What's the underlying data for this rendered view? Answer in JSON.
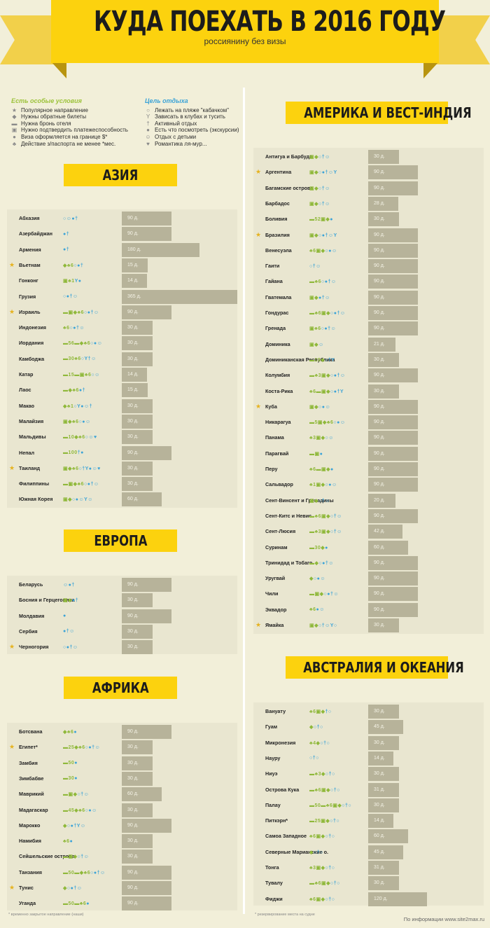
{
  "header": {
    "title": "КУДА ПОЕХАТЬ В 2016 ГОДУ",
    "subtitle": "россиянину без визы"
  },
  "legend": {
    "conditions_title": "Есть особые условия",
    "conditions": [
      {
        "glyph": "★",
        "text": "Популярное направление"
      },
      {
        "glyph": "◆",
        "text": "Нужны обратные билеты"
      },
      {
        "glyph": "▬",
        "text": "Нужна бронь отеля"
      },
      {
        "glyph": "▣",
        "text": "Нужно подтвердить платежеспособность"
      },
      {
        "glyph": "●",
        "text": "Виза оформляется на границе $*"
      },
      {
        "glyph": "♣",
        "text": "Действие з/паспорта не менее *мес."
      }
    ],
    "goals_title": "Цель отдыха",
    "goals": [
      {
        "glyph": "○",
        "text": "Лежать на пляже \"кабачком\""
      },
      {
        "glyph": "Y",
        "text": "Зависать в клубах и тусить"
      },
      {
        "glyph": "†",
        "text": "Активный отдых"
      },
      {
        "glyph": "●",
        "text": "Есть что посмотреть (экскурсии)"
      },
      {
        "glyph": "☺",
        "text": "Отдых с детьми"
      },
      {
        "glyph": "♥",
        "text": "Романтика ля-мур..."
      }
    ]
  },
  "max_days": 365,
  "regions": [
    {
      "title": "АЗИЯ",
      "countries": [
        {
          "name": "Абхазия",
          "star": false,
          "cond": "",
          "goal": "○☺●†",
          "days": 90,
          "days_label": "90 д."
        },
        {
          "name": "Азербайджан",
          "star": false,
          "cond": "",
          "goal": "●†",
          "days": 90,
          "days_label": "90 д."
        },
        {
          "name": "Армения",
          "star": false,
          "cond": "",
          "goal": "●†",
          "days": 180,
          "days_label": "180 д."
        },
        {
          "name": "Вьетнам",
          "star": true,
          "cond": "◆♣6",
          "goal": "○●†",
          "days": 15,
          "days_label": "15 д."
        },
        {
          "name": "Гонконг",
          "star": false,
          "cond": "▣♣1",
          "goal": "Y●",
          "days": 14,
          "days_label": "14 д."
        },
        {
          "name": "Грузия",
          "star": false,
          "cond": "",
          "goal": "○●†☺",
          "days": 365,
          "days_label": "365 д."
        },
        {
          "name": "Израиль",
          "star": true,
          "cond": "▬▣◆♣6",
          "goal": "○●†☺",
          "days": 90,
          "days_label": "90 д."
        },
        {
          "name": "Индонезия",
          "star": false,
          "cond": "♣6",
          "goal": "○●†☺",
          "days": 30,
          "days_label": "30 д."
        },
        {
          "name": "Иордания",
          "star": false,
          "cond": "▬56▬◆♣6",
          "goal": "○●☺",
          "days": 30,
          "days_label": "30 д."
        },
        {
          "name": "Камбоджа",
          "star": false,
          "cond": "▬30♣6",
          "goal": "○Y†☺",
          "days": 30,
          "days_label": "30 д."
        },
        {
          "name": "Катар",
          "star": false,
          "cond": "▬15▬▣♣6",
          "goal": "○☺",
          "days": 14,
          "days_label": "14 д."
        },
        {
          "name": "Лаос",
          "star": false,
          "cond": "▬◆♣6",
          "goal": "●†",
          "days": 15,
          "days_label": "15 д."
        },
        {
          "name": "Макао",
          "star": false,
          "cond": "◆♣1",
          "goal": "○Y●☺†",
          "days": 30,
          "days_label": "30 д."
        },
        {
          "name": "Малайзия",
          "star": false,
          "cond": "▣◆♣6",
          "goal": "○●☺",
          "days": 30,
          "days_label": "30 д."
        },
        {
          "name": "Мальдивы",
          "star": false,
          "cond": "▬10◆♣6",
          "goal": "○☺♥",
          "days": 30,
          "days_label": "30 д."
        },
        {
          "name": "Непал",
          "star": false,
          "cond": "▬100",
          "goal": "†●",
          "days": 90,
          "days_label": "90 д."
        },
        {
          "name": "Таиланд",
          "star": true,
          "cond": "▣◆♣6",
          "goal": "○†Y●☺♥",
          "days": 30,
          "days_label": "30 д."
        },
        {
          "name": "Филиппины",
          "star": false,
          "cond": "▬▣◆♣6",
          "goal": "○●†☺",
          "days": 30,
          "days_label": "30 д."
        },
        {
          "name": "Южная Корея",
          "star": false,
          "cond": "▣◆",
          "goal": "○●☺Y☺",
          "days": 60,
          "days_label": "60 д."
        }
      ]
    },
    {
      "title": "ЕВРОПА",
      "countries": [
        {
          "name": "Беларусь",
          "star": false,
          "cond": "",
          "goal": "☺●†",
          "days": 90,
          "days_label": "90 д."
        },
        {
          "name": "Босния и Герцеговина",
          "star": false,
          "cond": "▣◆",
          "goal": "●†",
          "days": 30,
          "days_label": "30 д."
        },
        {
          "name": "Молдавия",
          "star": false,
          "cond": "",
          "goal": "●",
          "days": 90,
          "days_label": "90 д."
        },
        {
          "name": "Сербия",
          "star": false,
          "cond": "",
          "goal": "●†☺",
          "days": 30,
          "days_label": "30 д."
        },
        {
          "name": "Черногория",
          "star": true,
          "cond": "",
          "goal": "○●†☺",
          "days": 30,
          "days_label": "30 д."
        }
      ]
    },
    {
      "title": "АФРИКА",
      "countries": [
        {
          "name": "Ботсвана",
          "star": false,
          "cond": "◆♣6",
          "goal": "●",
          "days": 90,
          "days_label": "90 д."
        },
        {
          "name": "Египет*",
          "star": true,
          "cond": "▬25◆♣6",
          "goal": "○●†☺",
          "days": 30,
          "days_label": "30 д."
        },
        {
          "name": "Замбия",
          "star": false,
          "cond": "▬50",
          "goal": "●",
          "days": 30,
          "days_label": "30 д."
        },
        {
          "name": "Зимбабве",
          "star": false,
          "cond": "▬30",
          "goal": "●",
          "days": 30,
          "days_label": "30 д."
        },
        {
          "name": "Маврикий",
          "star": false,
          "cond": "▬▣◆",
          "goal": "○†☺",
          "days": 60,
          "days_label": "60 д."
        },
        {
          "name": "Мадагаскар",
          "star": false,
          "cond": "▬45◆♣6",
          "goal": "○●☺",
          "days": 30,
          "days_label": "30 д."
        },
        {
          "name": "Марокко",
          "star": false,
          "cond": "◆",
          "goal": "○●†Y☺",
          "days": 90,
          "days_label": "90 д."
        },
        {
          "name": "Намибия",
          "star": false,
          "cond": "♣6",
          "goal": "●",
          "days": 30,
          "days_label": "30 д."
        },
        {
          "name": "Сейшельские острова",
          "star": false,
          "cond": "▬▣◆",
          "goal": "○†☺",
          "days": 30,
          "days_label": "30 д."
        },
        {
          "name": "Танзания",
          "star": false,
          "cond": "▬50▬◆♣6",
          "goal": "○●†☺",
          "days": 90,
          "days_label": "90 д."
        },
        {
          "name": "Тунис",
          "star": true,
          "cond": "◆",
          "goal": "○●†☺",
          "days": 90,
          "days_label": "90 д."
        },
        {
          "name": "Уганда",
          "star": false,
          "cond": "▬50▬♣6",
          "goal": "●",
          "days": 90,
          "days_label": "90 д."
        }
      ]
    },
    {
      "title": "АМЕРИКА И ВЕСТ-ИНДИЯ",
      "countries": [
        {
          "name": "Антигуа и Барбуда",
          "star": false,
          "cond": "▣◆",
          "goal": "○†☺",
          "days": 30,
          "days_label": "30 д."
        },
        {
          "name": "Аргентина",
          "star": true,
          "cond": "▣◆",
          "goal": "○●†☺Y",
          "days": 90,
          "days_label": "90 д."
        },
        {
          "name": "Багамские острова",
          "star": false,
          "cond": "▣◆",
          "goal": "○†☺",
          "days": 90,
          "days_label": "90 д."
        },
        {
          "name": "Барбадос",
          "star": false,
          "cond": "▣◆",
          "goal": "○†☺",
          "days": 28,
          "days_label": "28 д."
        },
        {
          "name": "Боливия",
          "star": false,
          "cond": "▬52▣◆",
          "goal": "●",
          "days": 30,
          "days_label": "30 д."
        },
        {
          "name": "Бразилия",
          "star": true,
          "cond": "▣◆",
          "goal": "○●†☺Y",
          "days": 90,
          "days_label": "90 д."
        },
        {
          "name": "Венесуэла",
          "star": false,
          "cond": "♣6▣◆",
          "goal": "○●☺",
          "days": 90,
          "days_label": "90 д."
        },
        {
          "name": "Гаити",
          "star": false,
          "cond": "",
          "goal": "○†☺",
          "days": 90,
          "days_label": "90 д."
        },
        {
          "name": "Гайана",
          "star": false,
          "cond": "▬♣6",
          "goal": "○●†☺",
          "days": 90,
          "days_label": "90 д."
        },
        {
          "name": "Гватемала",
          "star": false,
          "cond": "▣◆",
          "goal": "●†☺",
          "days": 90,
          "days_label": "90 д."
        },
        {
          "name": "Гондурас",
          "star": false,
          "cond": "▬♣6▣◆",
          "goal": "○●†☺",
          "days": 90,
          "days_label": "90 д."
        },
        {
          "name": "Гренада",
          "star": false,
          "cond": "▣♣6",
          "goal": "○●†☺",
          "days": 90,
          "days_label": "90 д."
        },
        {
          "name": "Доминика",
          "star": false,
          "cond": "▣◆",
          "goal": "☺",
          "days": 21,
          "days_label": "21 д."
        },
        {
          "name": "Доминиканская Республика",
          "star": false,
          "cond": "▬10◆",
          "goal": "○†Y",
          "days": 30,
          "days_label": "30 д."
        },
        {
          "name": "Колумбия",
          "star": false,
          "cond": "▬♣3▣◆",
          "goal": "○●†☺",
          "days": 90,
          "days_label": "90 д."
        },
        {
          "name": "Коста-Рика",
          "star": false,
          "cond": "♣6▬▣◆",
          "goal": "○●†Y",
          "days": 30,
          "days_label": "30 д."
        },
        {
          "name": "Куба",
          "star": true,
          "cond": "▣◆",
          "goal": "○●☺",
          "days": 90,
          "days_label": "90 д."
        },
        {
          "name": "Никарагуа",
          "star": false,
          "cond": "▬5▣◆♣6",
          "goal": "○●☺",
          "days": 90,
          "days_label": "90 д."
        },
        {
          "name": "Панама",
          "star": false,
          "cond": "♣3▣◆",
          "goal": "○☺",
          "days": 90,
          "days_label": "90 д."
        },
        {
          "name": "Парагвай",
          "star": false,
          "cond": "▬▣",
          "goal": "●",
          "days": 90,
          "days_label": "90 д."
        },
        {
          "name": "Перу",
          "star": false,
          "cond": "♣6▬▣◆",
          "goal": "●",
          "days": 90,
          "days_label": "90 д."
        },
        {
          "name": "Сальвадор",
          "star": false,
          "cond": "♣1▣◆",
          "goal": "○●☺",
          "days": 90,
          "days_label": "90 д."
        },
        {
          "name": "Сент-Винсент и Гренадины",
          "star": false,
          "cond": "▣◆",
          "goal": "○†☺",
          "days": 20,
          "days_label": "20 д."
        },
        {
          "name": "Сент-Китс и Невис",
          "star": false,
          "cond": "▬♣6▣◆",
          "goal": "○†☺",
          "days": 90,
          "days_label": "90 д."
        },
        {
          "name": "Сент-Люсия",
          "star": false,
          "cond": "▬♣3▣◆",
          "goal": "○†☺",
          "days": 42,
          "days_label": "42 д."
        },
        {
          "name": "Суринам",
          "star": false,
          "cond": "▬30◆",
          "goal": "●",
          "days": 60,
          "days_label": "60 д."
        },
        {
          "name": "Тринидад и Тобаго",
          "star": false,
          "cond": "▬◆",
          "goal": "○●†☺",
          "days": 90,
          "days_label": "90 д."
        },
        {
          "name": "Уругвай",
          "star": false,
          "cond": "◆",
          "goal": "○●☺",
          "days": 90,
          "days_label": "90 д."
        },
        {
          "name": "Чили",
          "star": false,
          "cond": "▬▣◆",
          "goal": "○●†☺",
          "days": 90,
          "days_label": "90 д."
        },
        {
          "name": "Эквадор",
          "star": false,
          "cond": "♣6",
          "goal": "●☺",
          "days": 90,
          "days_label": "90 д."
        },
        {
          "name": "Ямайка",
          "star": true,
          "cond": "▣◆",
          "goal": "○†☺Y○",
          "days": 30,
          "days_label": "30 д."
        }
      ]
    },
    {
      "title": "АВСТРАЛИЯ И ОКЕАНИЯ",
      "countries": [
        {
          "name": "Вануату",
          "star": false,
          "cond": "♣6▣◆",
          "goal": "†○",
          "days": 30,
          "days_label": "30 д."
        },
        {
          "name": "Гуам",
          "star": false,
          "cond": "◆",
          "goal": "○†○",
          "days": 45,
          "days_label": "45 д."
        },
        {
          "name": "Микронезия",
          "star": false,
          "cond": "♣4◆",
          "goal": "○†○",
          "days": 30,
          "days_label": "30 д."
        },
        {
          "name": "Науру",
          "star": false,
          "cond": "",
          "goal": "○†○",
          "days": 14,
          "days_label": "14 д."
        },
        {
          "name": "Ниуэ",
          "star": false,
          "cond": "▬♣3◆",
          "goal": "○†○",
          "days": 30,
          "days_label": "30 д."
        },
        {
          "name": "Острова Кука",
          "star": false,
          "cond": "▬♣6▣◆",
          "goal": "○†○",
          "days": 31,
          "days_label": "31 д."
        },
        {
          "name": "Палау",
          "star": false,
          "cond": "▬50▬♣6▣◆",
          "goal": "○†○",
          "days": 30,
          "days_label": "30 д."
        },
        {
          "name": "Питкэрн*",
          "star": false,
          "cond": "▬25▣◆",
          "goal": "○†○",
          "days": 14,
          "days_label": "14 д."
        },
        {
          "name": "Самоа Западное",
          "star": false,
          "cond": "♣6▣◆",
          "goal": "○†○",
          "days": 60,
          "days_label": "60 д."
        },
        {
          "name": "Северные Марианские о.",
          "star": false,
          "cond": "◆",
          "goal": "○†○",
          "days": 45,
          "days_label": "45 д."
        },
        {
          "name": "Тонга",
          "star": false,
          "cond": "♣3▣◆",
          "goal": "○†○",
          "days": 31,
          "days_label": "31 д."
        },
        {
          "name": "Тувалу",
          "star": false,
          "cond": "▬♣6▣◆",
          "goal": "○†○",
          "days": 30,
          "days_label": "30 д."
        },
        {
          "name": "Фиджи",
          "star": false,
          "cond": "♣6▣◆",
          "goal": "○†○",
          "days": 120,
          "days_label": "120 д."
        }
      ]
    }
  ],
  "footnotes": {
    "left": "* временно закрытое направление (наши)",
    "right": "* резервирование места на судне",
    "source": "По информации www.site2max.ru"
  },
  "colors": {
    "accent": "#fcd20e",
    "condition": "#8fb83a",
    "goal": "#3ba3d7",
    "bar": "#b7b39a",
    "star": "#e6b21e"
  }
}
